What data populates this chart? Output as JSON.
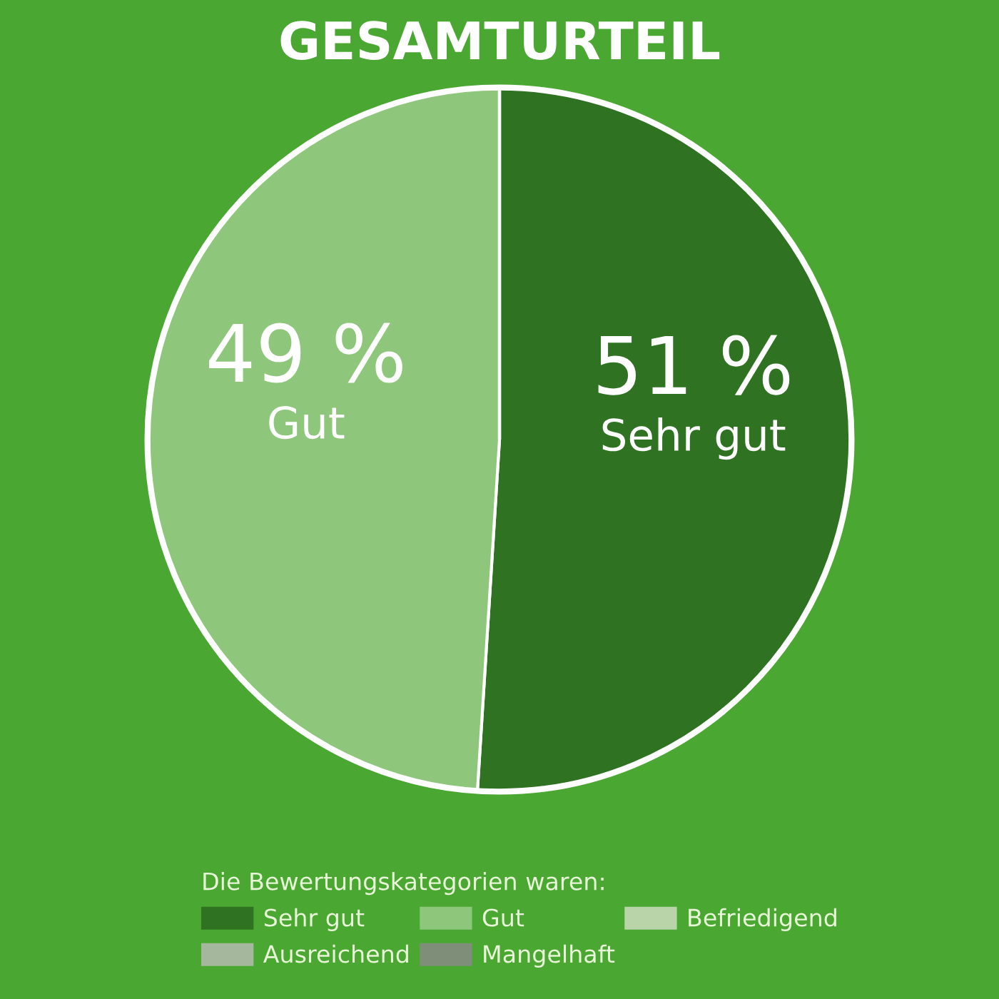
{
  "chart_data": {
    "type": "pie",
    "title": "GESAMTURTEIL",
    "categories": [
      "Sehr gut",
      "Gut",
      "Befriedigend",
      "Ausreichend",
      "Mangelhaft"
    ],
    "values": [
      51,
      49,
      0,
      0,
      0
    ],
    "value_labels": [
      "51 %",
      "49 %",
      null,
      null,
      null
    ],
    "colors": [
      "#2e7222",
      "#8ec67c",
      "#b9d4a8",
      "#a5b79c",
      "#7f8e78"
    ],
    "legend_title": "Die Bewertungskategorien waren:",
    "legend": "bottom"
  }
}
